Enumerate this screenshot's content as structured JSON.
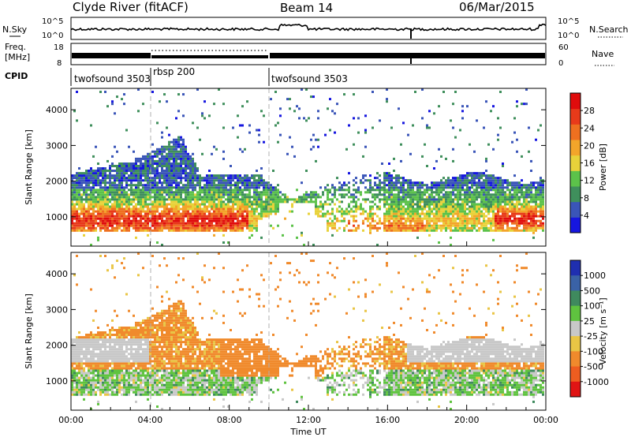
{
  "header": {
    "station": "Clyde River (fitACF)",
    "beam": "Beam 14",
    "date": "06/Mar/2015"
  },
  "noise_panel": {
    "left_label": "N.Sky",
    "right_label": "N.Search",
    "left_ticks": [
      "10^5",
      "10^0"
    ],
    "right_ticks": [
      "10^5",
      "10^0"
    ]
  },
  "freq_panel": {
    "left_label_1": "Freq.",
    "left_label_2": "[MHz]",
    "right_label": "Nave",
    "left_ticks": [
      "18",
      "8"
    ],
    "right_ticks": [
      "60",
      "0"
    ]
  },
  "cpid_panel": {
    "label": "CPID",
    "segments": [
      {
        "name": "twofsound 3503",
        "start_hour": 0,
        "end_hour": 3.95
      },
      {
        "name": "rbsp 200",
        "start_hour": 3.95,
        "end_hour": 9.95
      },
      {
        "name": "twofsound 3503",
        "start_hour": 9.95,
        "end_hour": 24
      }
    ]
  },
  "colors": {
    "power": [
      "#1616e0",
      "#3a55b8",
      "#3f8f5c",
      "#5cc24a",
      "#e8d23a",
      "#f3a52a",
      "#ee7020",
      "#e83a1a",
      "#e00c0c"
    ],
    "velocity": [
      "#1f2fb0",
      "#3a62a6",
      "#3f8a5e",
      "#5fc33f",
      "#c8c8c8",
      "#e9c545",
      "#f08a2c",
      "#ee5d20",
      "#e01414"
    ]
  },
  "chart_data": [
    {
      "type": "heatmap",
      "title": "",
      "xlabel": "",
      "ylabel": "Slant Range [km]",
      "x_range_hours": [
        0,
        24
      ],
      "ylim": [
        180,
        4600
      ],
      "yticks": [
        1000,
        2000,
        3000,
        4000
      ],
      "colorbar": {
        "label": "Power [dB]",
        "range": [
          0,
          32
        ],
        "ticks": [
          4,
          8,
          12,
          16,
          20,
          24,
          28
        ]
      }
    },
    {
      "type": "heatmap",
      "title": "",
      "xlabel": "Time UT",
      "ylabel": "Slant Range [km]",
      "x_range_hours": [
        0,
        24
      ],
      "ylim": [
        180,
        4600
      ],
      "xticks": [
        "00:00",
        "04:00",
        "08:00",
        "12:00",
        "16:00",
        "20:00",
        "00:00"
      ],
      "yticks": [
        1000,
        2000,
        3000,
        4000
      ],
      "colorbar": {
        "label": "Velocity [m s⁻¹]",
        "ticks": [
          1000,
          500,
          100,
          25,
          -25,
          -100,
          -500,
          -1000
        ]
      }
    }
  ]
}
